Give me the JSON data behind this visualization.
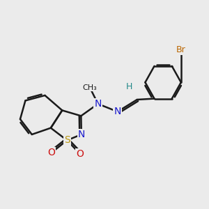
{
  "background_color": "#ebebeb",
  "bond_color": "#1a1a1a",
  "bond_width": 1.8,
  "figsize": [
    3.0,
    3.0
  ],
  "dpi": 100,
  "atoms": {
    "S": {
      "color": "#b8960c",
      "fontsize": 10
    },
    "N": {
      "color": "#1919cc",
      "fontsize": 10
    },
    "O": {
      "color": "#cc1111",
      "fontsize": 10
    },
    "Br": {
      "color": "#bb6600",
      "fontsize": 9
    },
    "H": {
      "color": "#228888",
      "fontsize": 9
    }
  }
}
